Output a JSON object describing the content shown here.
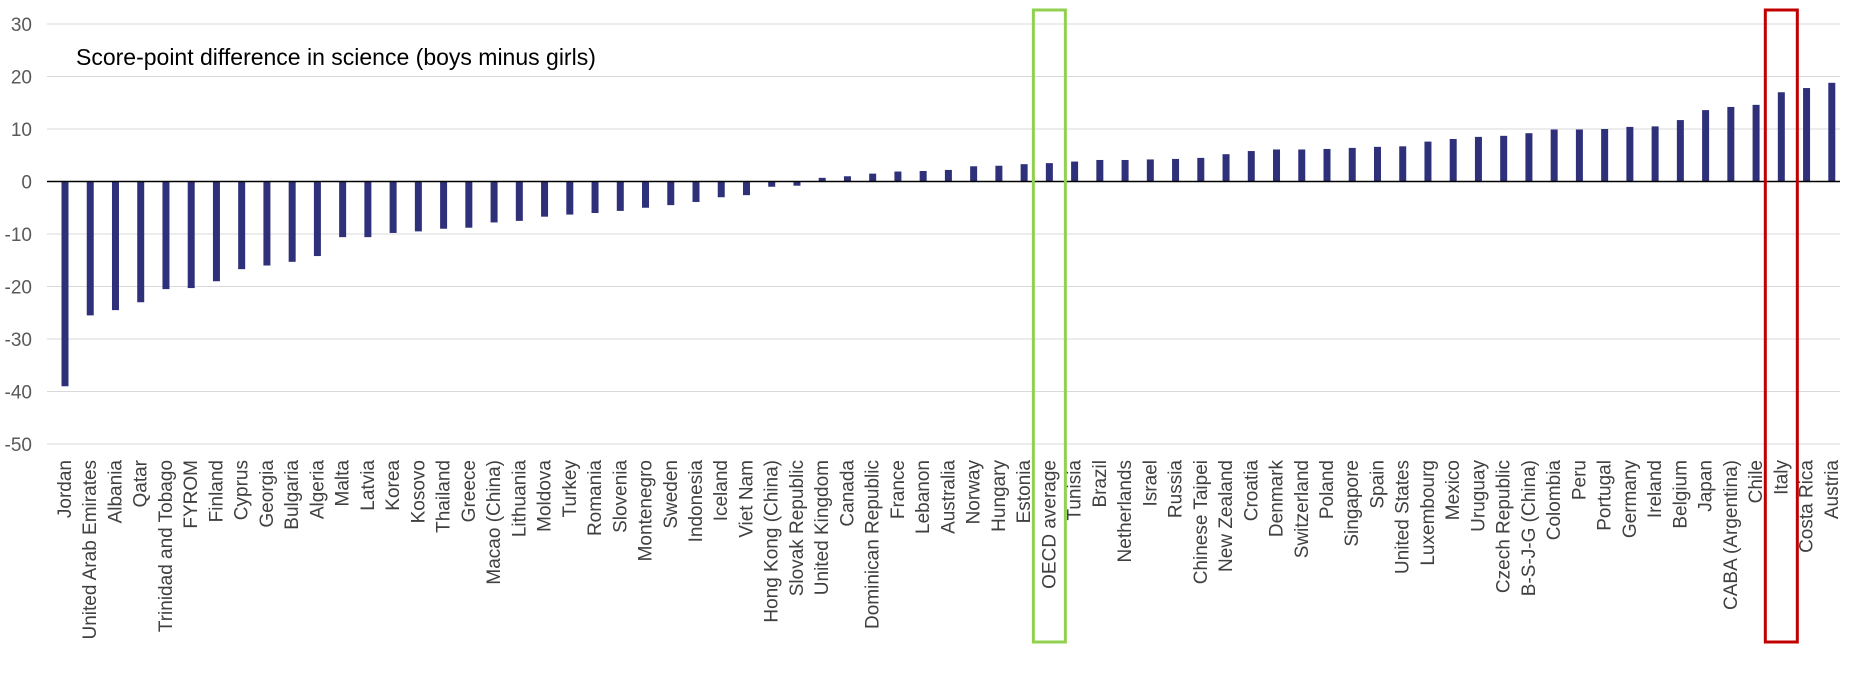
{
  "chart_data": {
    "type": "bar",
    "title": "Score-point difference in science (boys minus girls)",
    "ylim": [
      -50,
      30
    ],
    "yticks": [
      30,
      20,
      10,
      0,
      -10,
      -20,
      -30,
      -40,
      -50
    ],
    "grid": true,
    "bar_color": "#2E3079",
    "categories": [
      "Jordan",
      "United Arab Emirates",
      "Albania",
      "Qatar",
      "Trinidad and Tobago",
      "FYROM",
      "Finland",
      "Cyprus",
      "Georgia",
      "Bulgaria",
      "Algeria",
      "Malta",
      "Latvia",
      "Korea",
      "Kosovo",
      "Thailand",
      "Greece",
      "Macao (China)",
      "Lithuania",
      "Moldova",
      "Turkey",
      "Romania",
      "Slovenia",
      "Montenegro",
      "Sweden",
      "Indonesia",
      "Iceland",
      "Viet Nam",
      "Hong Kong (China)",
      "Slovak Republic",
      "United Kingdom",
      "Canada",
      "Dominican Republic",
      "France",
      "Lebanon",
      "Australia",
      "Norway",
      "Hungary",
      "Estonia",
      "OECD average",
      "Tunisia",
      "Brazil",
      "Netherlands",
      "Israel",
      "Russia",
      "Chinese Taipei",
      "New Zealand",
      "Croatia",
      "Denmark",
      "Switzerland",
      "Poland",
      "Singapore",
      "Spain",
      "United States",
      "Luxembourg",
      "Mexico",
      "Uruguay",
      "Czech Republic",
      "B-S-J-G (China)",
      "Colombia",
      "Peru",
      "Portugal",
      "Germany",
      "Ireland",
      "Belgium",
      "Japan",
      "CABA (Argentina)",
      "Chile",
      "Italy",
      "Costa Rica",
      "Austria"
    ],
    "values": [
      -39,
      -25.5,
      -24.5,
      -23,
      -20.5,
      -20.3,
      -19,
      -16.7,
      -16,
      -15.3,
      -14.2,
      -10.6,
      -10.6,
      -9.8,
      -9.5,
      -9,
      -8.8,
      -7.8,
      -7.5,
      -6.7,
      -6.3,
      -6.0,
      -5.6,
      -5.0,
      -4.5,
      -3.9,
      -3.0,
      -2.6,
      -1.0,
      -0.8,
      0.7,
      1.0,
      1.5,
      1.9,
      2.0,
      2.2,
      2.9,
      3.0,
      3.3,
      3.5,
      3.8,
      4.1,
      4.1,
      4.2,
      4.3,
      4.5,
      5.2,
      5.8,
      6.1,
      6.1,
      6.2,
      6.4,
      6.6,
      6.7,
      7.6,
      8.1,
      8.5,
      8.7,
      9.2,
      9.9,
      9.9,
      10.0,
      10.4,
      10.5,
      11.7,
      13.6,
      14.2,
      14.6,
      17.0,
      17.8,
      18.8
    ],
    "highlights": [
      {
        "category": "OECD average",
        "color": "#92D050"
      },
      {
        "category": "Italy",
        "color": "#C00000"
      }
    ]
  }
}
